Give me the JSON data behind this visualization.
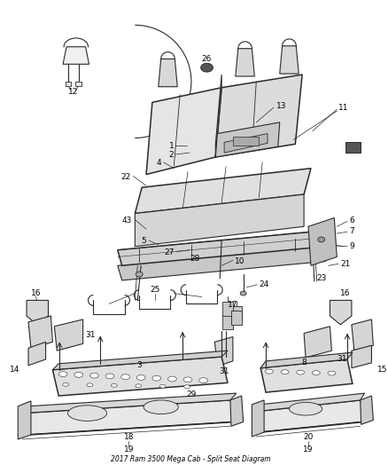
{
  "title": "2017 Ram 3500 Mega Cab - Split Seat Diagram",
  "bg_color": "#ffffff",
  "line_color": "#2a2a2a",
  "label_color": "#000000",
  "fig_width": 4.38,
  "fig_height": 5.33,
  "dpi": 100
}
